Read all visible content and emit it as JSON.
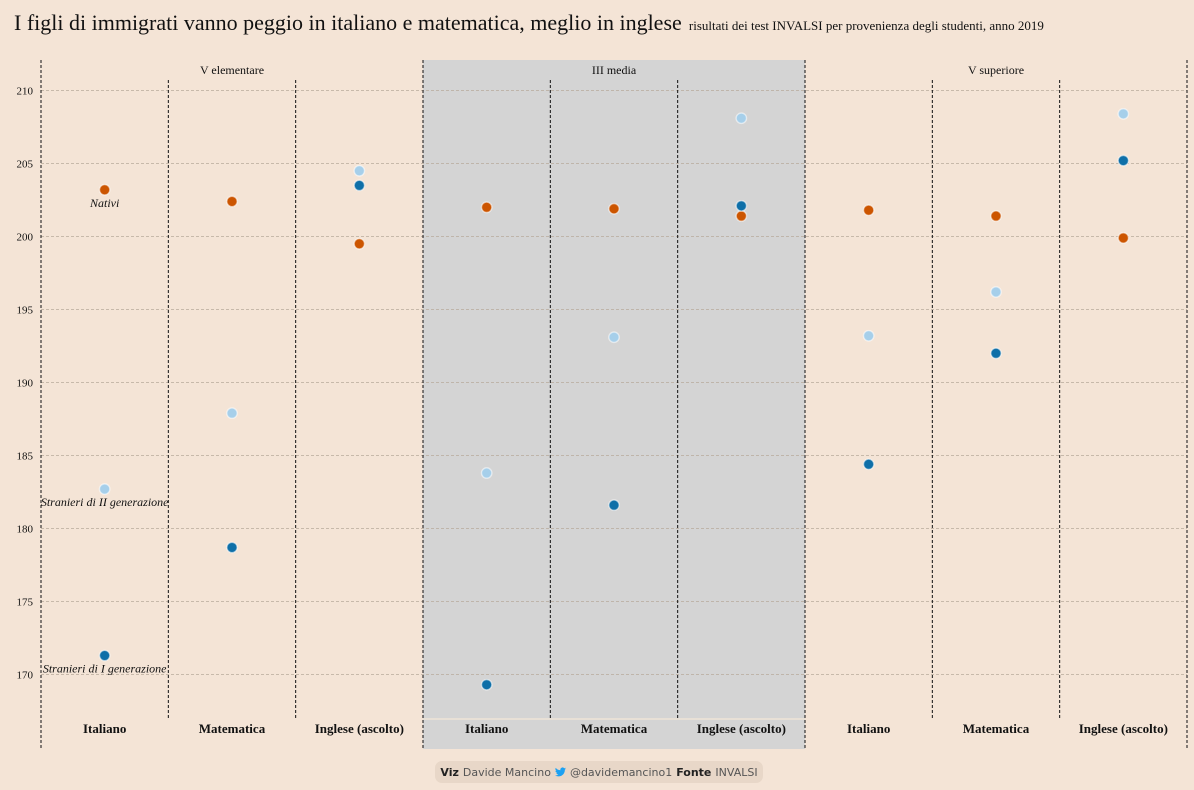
{
  "header": {
    "title": "I figli di immigrati vanno peggio in italiano e matematica, meglio in inglese",
    "subtitle": "risultati dei test INVALSI per provenienza degli studenti, anno 2019"
  },
  "footer": {
    "viz_label": "Viz",
    "viz_author": "Davide Mancino",
    "twitter_icon": "twitter-bird-icon",
    "twitter_handle": "@davidemancino1",
    "source_label": "Fonte",
    "source_value": "INVALSI"
  },
  "chart_data": {
    "type": "scatter",
    "title": "I figli di immigrati vanno peggio in italiano e matematica, meglio in inglese",
    "subtitle": "risultati dei test INVALSI per provenienza degli studenti, anno 2019",
    "xlabel": "",
    "ylabel": "",
    "ylim": [
      167,
      212
    ],
    "yticks": [
      170,
      175,
      180,
      185,
      190,
      195,
      200,
      205,
      210
    ],
    "grid": true,
    "groups": [
      {
        "name": "V elementare",
        "highlighted": false
      },
      {
        "name": "III media",
        "highlighted": true
      },
      {
        "name": "V superiore",
        "highlighted": false
      }
    ],
    "subjects": [
      "Italiano",
      "Matematica",
      "Inglese (ascolto)"
    ],
    "categories": [
      "V elementare - Italiano",
      "V elementare - Matematica",
      "V elementare - Inglese (ascolto)",
      "III media - Italiano",
      "III media - Matematica",
      "III media - Inglese (ascolto)",
      "V superiore - Italiano",
      "V superiore - Matematica",
      "V superiore - Inglese (ascolto)"
    ],
    "series": [
      {
        "name": "Nativi",
        "color": "#cc5500",
        "values": [
          203.2,
          202.4,
          199.5,
          202.0,
          201.9,
          201.4,
          201.8,
          201.4,
          199.9
        ]
      },
      {
        "name": "Stranieri di II generazione",
        "color": "#a6cfea",
        "values": [
          182.7,
          187.9,
          204.5,
          183.8,
          193.1,
          208.1,
          193.2,
          196.2,
          208.4
        ]
      },
      {
        "name": "Stranieri di I generazione",
        "color": "#0e6fa8",
        "values": [
          171.3,
          178.7,
          203.5,
          169.3,
          181.6,
          202.1,
          184.4,
          192.0,
          205.2
        ]
      }
    ],
    "annotations": [
      {
        "text": "Nativi",
        "series": "Nativi",
        "category": "V elementare - Italiano"
      },
      {
        "text": "Stranieri di II generazione",
        "series": "Stranieri di II generazione",
        "category": "V elementare - Italiano"
      },
      {
        "text": "Stranieri di I generazione",
        "series": "Stranieri di I generazione",
        "category": "V elementare - Italiano"
      }
    ],
    "colors": {
      "background": "#f4e4d6",
      "highlight_panel": "#d4d4d4",
      "grid": "#c9b9aa"
    }
  }
}
